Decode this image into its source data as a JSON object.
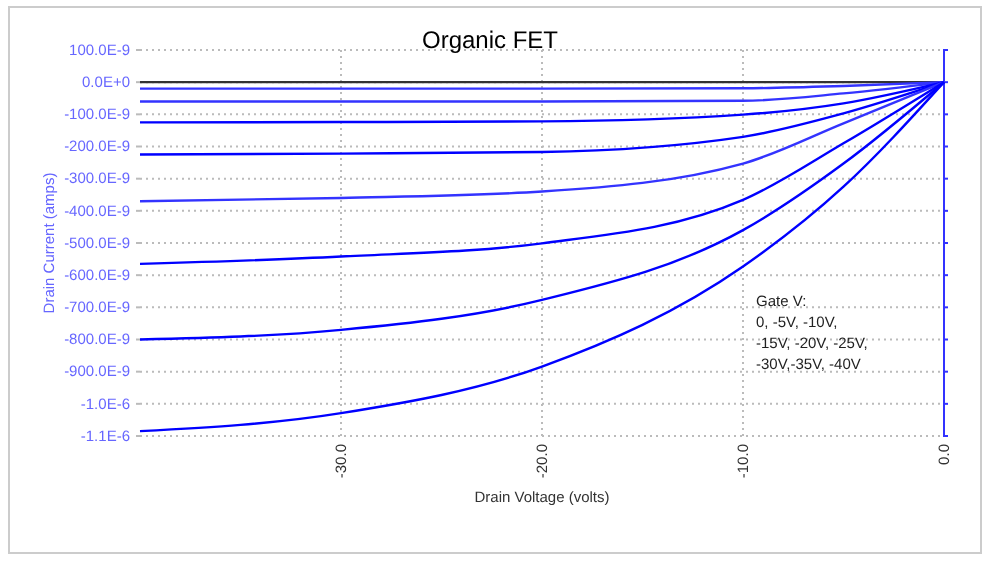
{
  "chart_data": {
    "type": "line",
    "title": "Organic FET",
    "xlabel": "Drain Voltage (volts)",
    "ylabel": "Drain Current (amps)",
    "x": [
      -40,
      -30,
      -20,
      -10,
      -5,
      0
    ],
    "series": [
      {
        "color": "#333333",
        "values": [
          0,
          0,
          0,
          0,
          0,
          0
        ]
      },
      {
        "color": "#3333ff",
        "values": [
          -2e-08,
          -2e-08,
          -2e-08,
          -1.9e-08,
          -1.2e-08,
          0
        ]
      },
      {
        "color": "#3333ff",
        "values": [
          -6e-08,
          -6e-08,
          -6e-08,
          -5.8e-08,
          -3.5e-08,
          0
        ]
      },
      {
        "color": "#0000ff",
        "values": [
          -1.25e-07,
          -1.24e-07,
          -1.22e-07,
          -1.01e-07,
          -6.6e-08,
          0
        ]
      },
      {
        "color": "#0000ff",
        "values": [
          -2.25e-07,
          -2.22e-07,
          -2.17e-07,
          -1.7e-07,
          -9.7e-08,
          0
        ]
      },
      {
        "color": "#3333ff",
        "values": [
          -3.7e-07,
          -3.6e-07,
          -3.4e-07,
          -2.53e-07,
          -1.28e-07,
          0
        ]
      },
      {
        "color": "#0000ff",
        "values": [
          -5.65e-07,
          -5.42e-07,
          -5.01e-07,
          -3.66e-07,
          -1.9e-07,
          0
        ]
      },
      {
        "color": "#0000ff",
        "values": [
          -8e-07,
          -7.7e-07,
          -6.77e-07,
          -4.6e-07,
          -2.53e-07,
          0
        ]
      },
      {
        "color": "#0000ff",
        "values": [
          -1.085e-06,
          -1.029e-06,
          -8.84e-07,
          -5.73e-07,
          -3.25e-07,
          0
        ]
      }
    ],
    "xlim": [
      -40,
      0
    ],
    "xticks": [
      {
        "value": -30,
        "label": "-30.0"
      },
      {
        "value": -20,
        "label": "-20.0"
      },
      {
        "value": -10,
        "label": "-10.0"
      },
      {
        "value": 0,
        "label": "0.0"
      }
    ],
    "ylim": [
      -1.1e-06,
      1e-07
    ],
    "yticks": [
      {
        "value": 1e-07,
        "label": "100.0E-9"
      },
      {
        "value": 0,
        "label": "0.0E+0"
      },
      {
        "value": -1e-07,
        "label": "-100.0E-9"
      },
      {
        "value": -2e-07,
        "label": "-200.0E-9"
      },
      {
        "value": -3e-07,
        "label": "-300.0E-9"
      },
      {
        "value": -4e-07,
        "label": "-400.0E-9"
      },
      {
        "value": -5e-07,
        "label": "-500.0E-9"
      },
      {
        "value": -6e-07,
        "label": "-600.0E-9"
      },
      {
        "value": -7e-07,
        "label": "-700.0E-9"
      },
      {
        "value": -8e-07,
        "label": "-800.0E-9"
      },
      {
        "value": -9e-07,
        "label": "-900.0E-9"
      },
      {
        "value": -1e-06,
        "label": "-1.0E-6"
      },
      {
        "value": -1.1e-06,
        "label": "-1.1E-6"
      }
    ],
    "annotations": [
      "Gate V:\n0, -5V, -10V,\n-15V, -20V, -25V,\n-30V,-35V, -40V"
    ],
    "grid": true,
    "marker": "none",
    "line_style": "solid"
  }
}
